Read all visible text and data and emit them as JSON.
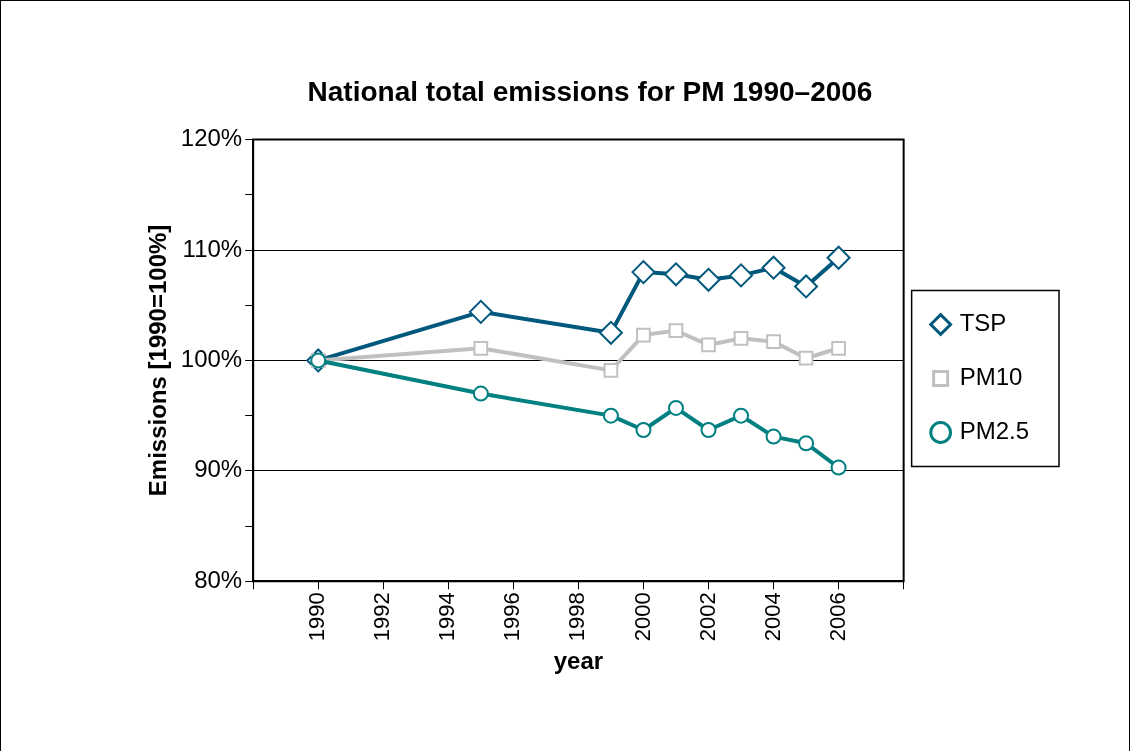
{
  "chart_data": {
    "type": "line",
    "title": "National total emissions for PM 1990–2006",
    "xlabel": "year",
    "ylabel": "Emissions [1990=100%]",
    "x": [
      1990,
      1995,
      1999,
      2000,
      2001,
      2002,
      2003,
      2004,
      2005,
      2006
    ],
    "series": [
      {
        "name": "TSP",
        "color": "#00587c",
        "marker": "diamond",
        "values": [
          100,
          104.4,
          102.5,
          108.0,
          107.8,
          107.3,
          107.7,
          108.4,
          106.7,
          109.3
        ]
      },
      {
        "name": "PM10",
        "color": "#c0c0c0",
        "marker": "square",
        "values": [
          100,
          101.1,
          99.1,
          102.3,
          102.7,
          101.4,
          102.0,
          101.7,
          100.2,
          101.1
        ]
      },
      {
        "name": "PM2.5",
        "color": "#008080",
        "marker": "circle",
        "values": [
          100,
          97.0,
          95.0,
          93.7,
          95.7,
          93.7,
          95.0,
          93.1,
          92.5,
          90.3
        ]
      }
    ],
    "xlim": [
      1988,
      2008
    ],
    "xticks": [
      {
        "value": 1988,
        "label": null
      },
      1990,
      1992,
      1994,
      1996,
      1998,
      2000,
      2002,
      2004,
      2006,
      {
        "value": 2008,
        "label": null
      }
    ],
    "ylim": [
      80,
      120
    ],
    "yticks": [
      {
        "value": 80,
        "label": "80%"
      },
      {
        "value": 85,
        "label": null
      },
      {
        "value": 90,
        "label": "90%"
      },
      {
        "value": 95,
        "label": null
      },
      {
        "value": 100,
        "label": "100%"
      },
      {
        "value": 105,
        "label": null
      },
      {
        "value": 110,
        "label": "110%"
      },
      {
        "value": 115,
        "label": null
      },
      {
        "value": 120,
        "label": "120%"
      }
    ],
    "grid": "y",
    "legend": "right",
    "line_style": "solid"
  }
}
